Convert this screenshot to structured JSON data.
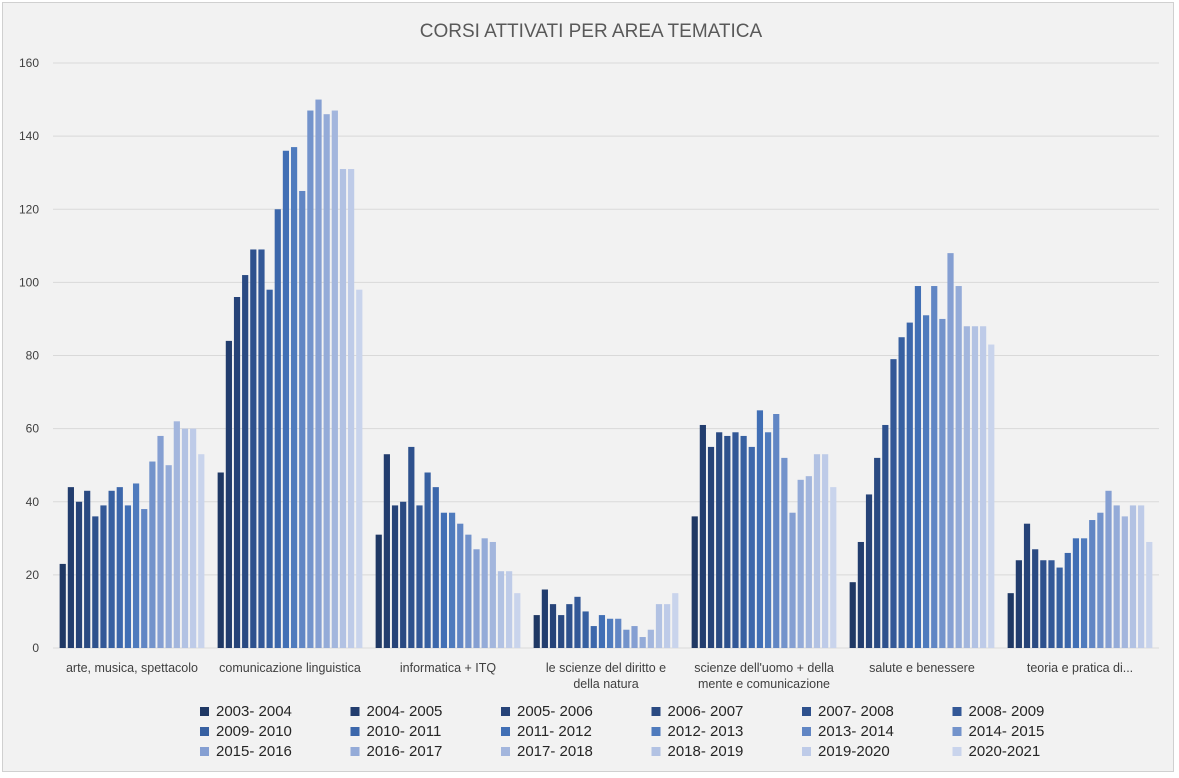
{
  "chart_data": {
    "type": "bar",
    "title": "CORSI ATTIVATI PER AREA TEMATICA",
    "xlabel": "",
    "ylabel": "",
    "ylim": [
      0,
      160
    ],
    "yticks": [
      0,
      20,
      40,
      60,
      80,
      100,
      120,
      140,
      160
    ],
    "grid": true,
    "legend_position": "bottom",
    "categories": [
      [
        "arte, musica, spettacolo"
      ],
      [
        "comunicazione linguistica"
      ],
      [
        "informatica + ITQ"
      ],
      [
        "le scienze del diritto  e",
        "della natura"
      ],
      [
        "scienze dell'uomo + della",
        "mente e comunicazione"
      ],
      [
        "salute e benessere"
      ],
      [
        "teoria e pratica di..."
      ]
    ],
    "series": [
      {
        "name": "2003- 2004",
        "color": "#1f3864",
        "values": [
          23,
          48,
          31,
          9,
          36,
          18,
          15
        ]
      },
      {
        "name": "2004- 2005",
        "color": "#223d6e",
        "values": [
          44,
          84,
          53,
          16,
          61,
          29,
          24
        ]
      },
      {
        "name": "2005- 2006",
        "color": "#264378",
        "values": [
          40,
          96,
          39,
          12,
          55,
          42,
          34
        ]
      },
      {
        "name": "2006- 2007",
        "color": "#2a4a82",
        "values": [
          43,
          102,
          40,
          9,
          59,
          52,
          27
        ]
      },
      {
        "name": "2007- 2008",
        "color": "#2e518d",
        "values": [
          36,
          109,
          55,
          12,
          58,
          61,
          24
        ]
      },
      {
        "name": "2008- 2009",
        "color": "#335897",
        "values": [
          39,
          109,
          39,
          14,
          59,
          79,
          24
        ]
      },
      {
        "name": "2009- 2010",
        "color": "#3760a1",
        "values": [
          43,
          98,
          48,
          10,
          58,
          85,
          22
        ]
      },
      {
        "name": "2010- 2011",
        "color": "#3c67ab",
        "values": [
          44,
          120,
          44,
          6,
          55,
          89,
          26
        ]
      },
      {
        "name": "2011- 2012",
        "color": "#416fb5",
        "values": [
          39,
          136,
          37,
          9,
          65,
          99,
          30
        ]
      },
      {
        "name": "2012- 2013",
        "color": "#4f7bbd",
        "values": [
          45,
          137,
          37,
          8,
          59,
          91,
          30
        ]
      },
      {
        "name": "2013- 2014",
        "color": "#6186c4",
        "values": [
          38,
          125,
          34,
          8,
          64,
          99,
          35
        ]
      },
      {
        "name": "2014- 2015",
        "color": "#7393cb",
        "values": [
          51,
          147,
          31,
          5,
          52,
          90,
          37
        ]
      },
      {
        "name": "2015- 2016",
        "color": "#859fd2",
        "values": [
          58,
          150,
          27,
          6,
          37,
          108,
          43
        ]
      },
      {
        "name": "2016- 2017",
        "color": "#94abd8",
        "values": [
          50,
          146,
          30,
          3,
          46,
          99,
          39
        ]
      },
      {
        "name": "2017- 2018",
        "color": "#a3b6dd",
        "values": [
          62,
          147,
          29,
          5,
          47,
          88,
          36
        ]
      },
      {
        "name": "2018- 2019",
        "color": "#b2c2e3",
        "values": [
          60,
          131,
          21,
          12,
          53,
          88,
          39
        ]
      },
      {
        "name": "2019-2020",
        "color": "#becbe8",
        "values": [
          60,
          131,
          21,
          12,
          53,
          88,
          39
        ]
      },
      {
        "name": "2020-2021",
        "color": "#c9d4ec",
        "values": [
          53,
          98,
          15,
          15,
          44,
          83,
          29
        ]
      }
    ]
  }
}
